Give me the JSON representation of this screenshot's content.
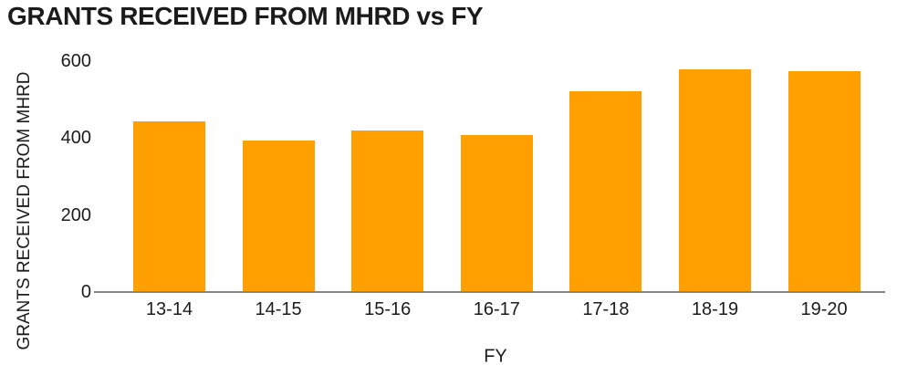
{
  "chart_data": {
    "type": "bar",
    "title": "GRANTS RECEIVED FROM MHRD vs FY",
    "xlabel": "FY",
    "ylabel": "GRANTS RECEIVED FROM MHRD",
    "categories": [
      "13-14",
      "14-15",
      "15-16",
      "16-17",
      "17-18",
      "18-19",
      "19-20"
    ],
    "values": [
      440,
      390,
      418,
      405,
      520,
      575,
      570
    ],
    "yticks": [
      0,
      200,
      400,
      600
    ],
    "ylim": [
      0,
      600
    ],
    "bar_color": "#FFA000",
    "axis_line_color": "#858585",
    "text_color": "#1c1c1c",
    "background_color": "#ffffff",
    "grid": false,
    "legend": "none"
  }
}
